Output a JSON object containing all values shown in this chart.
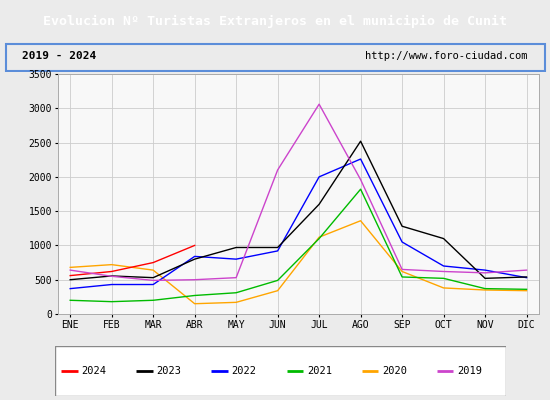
{
  "title": "Evolucion Nº Turistas Extranjeros en el municipio de Cunit",
  "subtitle_left": "2019 - 2024",
  "subtitle_right": "http://www.foro-ciudad.com",
  "months": [
    "ENE",
    "FEB",
    "MAR",
    "ABR",
    "MAY",
    "JUN",
    "JUL",
    "AGO",
    "SEP",
    "OCT",
    "NOV",
    "DIC"
  ],
  "ylim": [
    0,
    3500
  ],
  "yticks": [
    0,
    500,
    1000,
    1500,
    2000,
    2500,
    3000,
    3500
  ],
  "series": {
    "2024": {
      "color": "#ff0000",
      "data": [
        560,
        620,
        750,
        1000,
        null,
        null,
        null,
        null,
        null,
        null,
        null,
        null
      ]
    },
    "2023": {
      "color": "#000000",
      "data": [
        500,
        555,
        530,
        800,
        970,
        970,
        1600,
        2520,
        1280,
        1100,
        520,
        540
      ]
    },
    "2022": {
      "color": "#0000ff",
      "data": [
        370,
        430,
        430,
        840,
        800,
        920,
        2000,
        2260,
        1050,
        700,
        640,
        530
      ]
    },
    "2021": {
      "color": "#00bb00",
      "data": [
        200,
        180,
        200,
        270,
        310,
        490,
        1100,
        1820,
        540,
        520,
        370,
        360
      ]
    },
    "2020": {
      "color": "#ffa500",
      "data": [
        680,
        720,
        640,
        150,
        170,
        340,
        1120,
        1360,
        620,
        380,
        350,
        340
      ]
    },
    "2019": {
      "color": "#cc44cc",
      "data": [
        null,
        null,
        null,
        null,
        null,
        2100,
        3060,
        null,
        null,
        null,
        null,
        null
      ]
    }
  },
  "series_full": {
    "2019": {
      "color": "#cc44cc",
      "data": [
        640,
        550,
        490,
        500,
        530,
        2100,
        3060,
        1960,
        650,
        620,
        600,
        640
      ]
    }
  },
  "legend_order": [
    "2024",
    "2023",
    "2022",
    "2021",
    "2020",
    "2019"
  ],
  "background_color": "#ebebeb",
  "plot_bg_color": "#f8f8f8",
  "title_bg_color": "#5b8dd9",
  "title_fg_color": "#ffffff",
  "grid_color": "#cccccc",
  "border_color": "#5b8dd9"
}
